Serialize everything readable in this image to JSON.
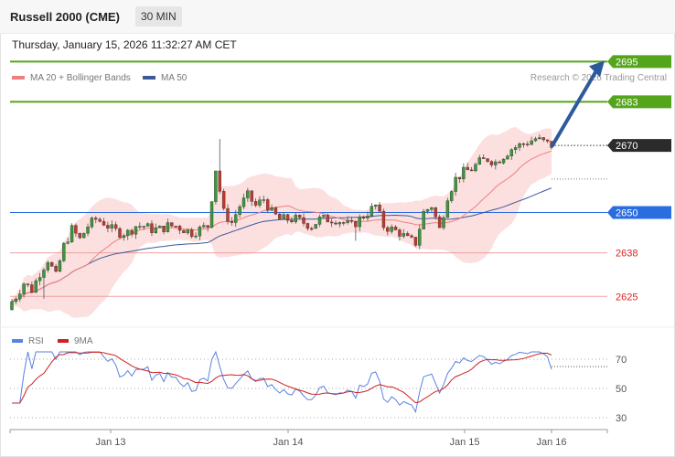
{
  "header": {
    "title": "Russell 2000 (CME)",
    "timeframe": "30 MIN"
  },
  "datetime": "Thursday, January 15, 2026 11:32:27 AM CET",
  "legend": {
    "ma20": "MA 20 + Bollinger Bands",
    "ma50": "MA 50"
  },
  "copyright": "Research © 2026 Trading Central",
  "rsi_legend": {
    "rsi": "RSI",
    "ma9": "9MA"
  },
  "colors": {
    "up": "#3a9a3a",
    "down": "#c0392b",
    "resistance": "#55a51c",
    "support": "#e06060",
    "pivot": "#2a6de0",
    "ma50": "#3a5a9a",
    "rsi": "#5a82e0",
    "rsi_ma": "#d02020"
  },
  "chart_data": [
    {
      "type": "candlestick",
      "title": "Russell 2000 (CME)",
      "xlabel": "",
      "ylabel": "",
      "x_ticks": [
        "Jan 13",
        "Jan 14",
        "Jan 15",
        "Jan 16"
      ],
      "ylim": [
        2618,
        2697
      ],
      "current_price": "2670",
      "levels": [
        {
          "value": 2695,
          "label": "2695",
          "type": "resistance"
        },
        {
          "value": 2683,
          "label": "2683",
          "type": "resistance"
        },
        {
          "value": 2650,
          "label": "2650",
          "type": "pivot"
        },
        {
          "value": 2638,
          "label": "2638",
          "type": "support"
        },
        {
          "value": 2625,
          "label": "2625",
          "type": "support"
        }
      ],
      "close_path": [
        2622,
        2625,
        2629,
        2627,
        2632,
        2636,
        2631,
        2640,
        2645,
        2642,
        2646,
        2648,
        2647,
        2645,
        2644,
        2644,
        2646,
        2646,
        2645,
        2645,
        2646,
        2646,
        2645,
        2644,
        2645,
        2646,
        2663,
        2650,
        2647,
        2652,
        2655,
        2652,
        2654,
        2650,
        2648,
        2648,
        2648,
        2647,
        2646,
        2648,
        2648,
        2648,
        2647,
        2646,
        2648,
        2650,
        2652,
        2646,
        2645,
        2644,
        2642,
        2641,
        2650,
        2652,
        2645,
        2655,
        2660,
        2662,
        2663,
        2665,
        2666,
        2665,
        2667,
        2669,
        2670,
        2671,
        2672,
        2671,
        2670
      ],
      "arrow_target": 2695,
      "series": [
        {
          "name": "MA 20 + Bollinger Bands"
        },
        {
          "name": "MA 50"
        }
      ]
    },
    {
      "type": "line",
      "title": "",
      "ylim": [
        25,
        75
      ],
      "y_ticks": [
        "70",
        "50",
        "30"
      ],
      "current_level": 65,
      "series": [
        {
          "name": "RSI"
        },
        {
          "name": "9MA"
        }
      ]
    }
  ]
}
